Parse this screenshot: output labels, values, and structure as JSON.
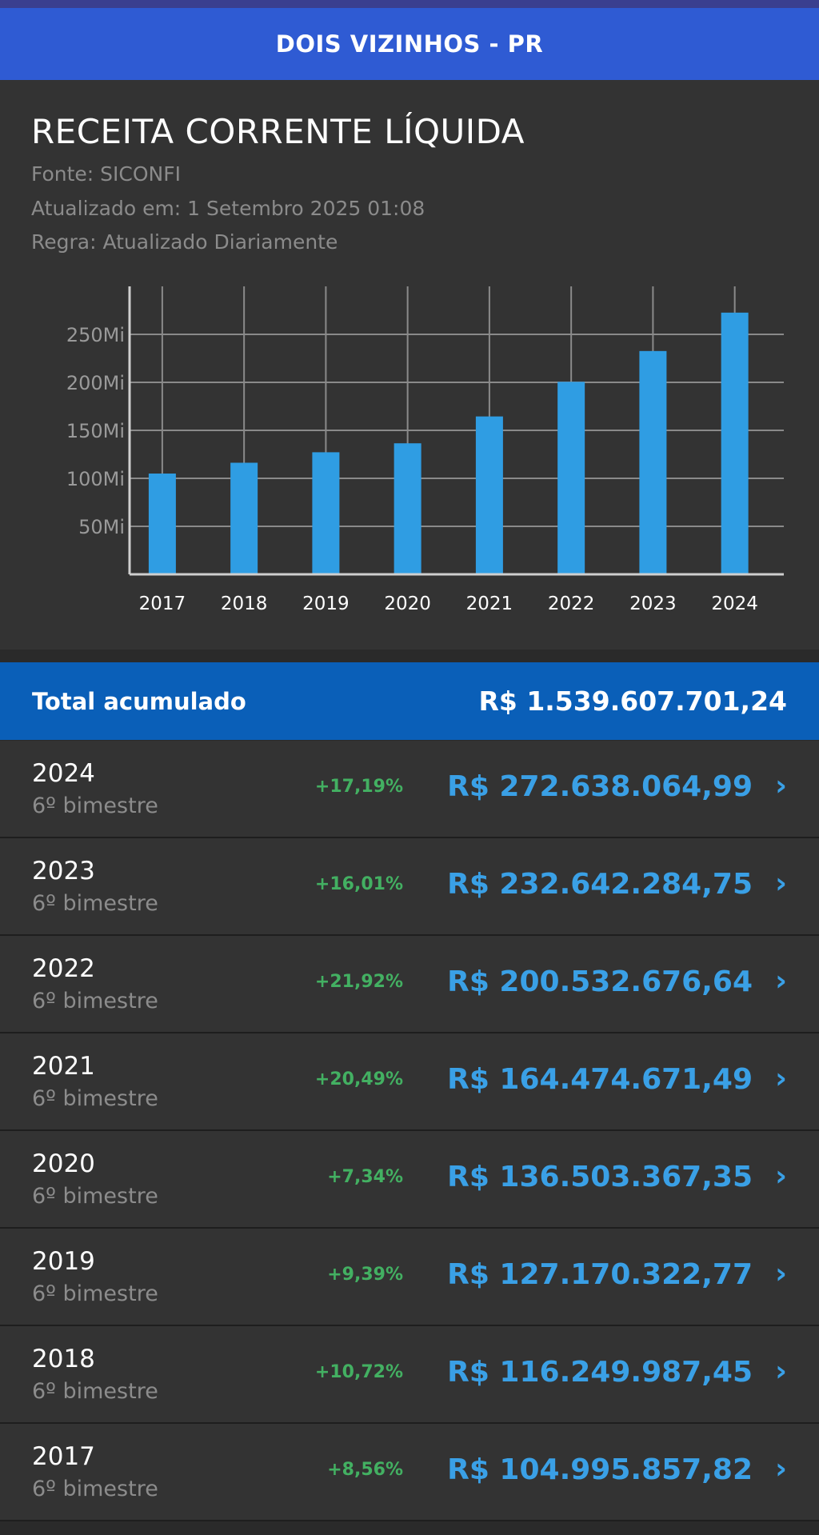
{
  "header": {
    "title": "DOIS VIZINHOS - PR"
  },
  "panel": {
    "heading": "RECEITA CORRENTE LÍQUIDA",
    "source": "Fonte: SICONFI",
    "updated": "Atualizado em: 1 Setembro 2025 01:08",
    "rule": "Regra: Atualizado Diariamente"
  },
  "chart_data": {
    "type": "bar",
    "categories": [
      "2017",
      "2018",
      "2019",
      "2020",
      "2021",
      "2022",
      "2023",
      "2024"
    ],
    "values": [
      104.99585782,
      116.24998745,
      127.17032277,
      136.50336735,
      164.47467149,
      200.53267664,
      232.64228475,
      272.63806499
    ],
    "unit": "Mi",
    "yticks": [
      "50Mi",
      "100Mi",
      "150Mi",
      "200Mi",
      "250Mi"
    ],
    "ytick_values": [
      50,
      100,
      150,
      200,
      250
    ],
    "ylim": [
      0,
      300
    ],
    "grid": true,
    "bar_color": "#2f9de3"
  },
  "total": {
    "label": "Total acumulado",
    "value": "R$ 1.539.607.701,24"
  },
  "rows": [
    {
      "year": "2024",
      "period": "6º bimestre",
      "pct": "+17,19%",
      "amount": "R$ 272.638.064,99",
      "chevron": "›"
    },
    {
      "year": "2023",
      "period": "6º bimestre",
      "pct": "+16,01%",
      "amount": "R$ 232.642.284,75",
      "chevron": "›"
    },
    {
      "year": "2022",
      "period": "6º bimestre",
      "pct": "+21,92%",
      "amount": "R$ 200.532.676,64",
      "chevron": "›"
    },
    {
      "year": "2021",
      "period": "6º bimestre",
      "pct": "+20,49%",
      "amount": "R$ 164.474.671,49",
      "chevron": "›"
    },
    {
      "year": "2020",
      "period": "6º bimestre",
      "pct": "+7,34%",
      "amount": "R$ 136.503.367,35",
      "chevron": "›"
    },
    {
      "year": "2019",
      "period": "6º bimestre",
      "pct": "+9,39%",
      "amount": "R$ 127.170.322,77",
      "chevron": "›"
    },
    {
      "year": "2018",
      "period": "6º bimestre",
      "pct": "+10,72%",
      "amount": "R$ 116.249.987,45",
      "chevron": "›"
    },
    {
      "year": "2017",
      "period": "6º bimestre",
      "pct": "+8,56%",
      "amount": "R$ 104.995.857,82",
      "chevron": "›"
    }
  ]
}
